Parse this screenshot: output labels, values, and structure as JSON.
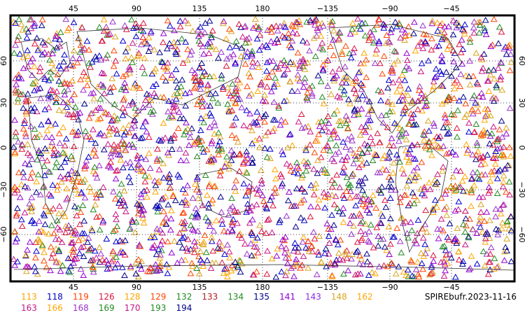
{
  "map": {
    "lon_ticks": [
      "45",
      "90",
      "135",
      "180",
      "−135",
      "−90",
      "−45"
    ],
    "lat_ticks": [
      "60",
      "30",
      "0",
      "−30",
      "−60"
    ],
    "marker_shape": "open-triangle"
  },
  "legend": {
    "row1": [
      {
        "id": "113",
        "color": "#ffa500"
      },
      {
        "id": "118",
        "color": "#0000cd"
      },
      {
        "id": "119",
        "color": "#ff4500"
      },
      {
        "id": "126",
        "color": "#dc143c"
      },
      {
        "id": "128",
        "color": "#ffa500"
      },
      {
        "id": "129",
        "color": "#ff4500"
      },
      {
        "id": "132",
        "color": "#228b22"
      },
      {
        "id": "133",
        "color": "#b22222"
      },
      {
        "id": "134",
        "color": "#228b22"
      },
      {
        "id": "135",
        "color": "#00008b"
      },
      {
        "id": "141",
        "color": "#9400d3"
      },
      {
        "id": "143",
        "color": "#8a2be2"
      },
      {
        "id": "148",
        "color": "#daa520"
      },
      {
        "id": "162",
        "color": "#ffa500"
      }
    ],
    "row2": [
      {
        "id": "163",
        "color": "#c71585"
      },
      {
        "id": "166",
        "color": "#ffa500"
      },
      {
        "id": "168",
        "color": "#9932cc"
      },
      {
        "id": "169",
        "color": "#228b22"
      },
      {
        "id": "170",
        "color": "#c71585"
      },
      {
        "id": "193",
        "color": "#228b22"
      },
      {
        "id": "194",
        "color": "#00008b"
      }
    ]
  },
  "file_label": "SPIREbufr.2023-11-16"
}
